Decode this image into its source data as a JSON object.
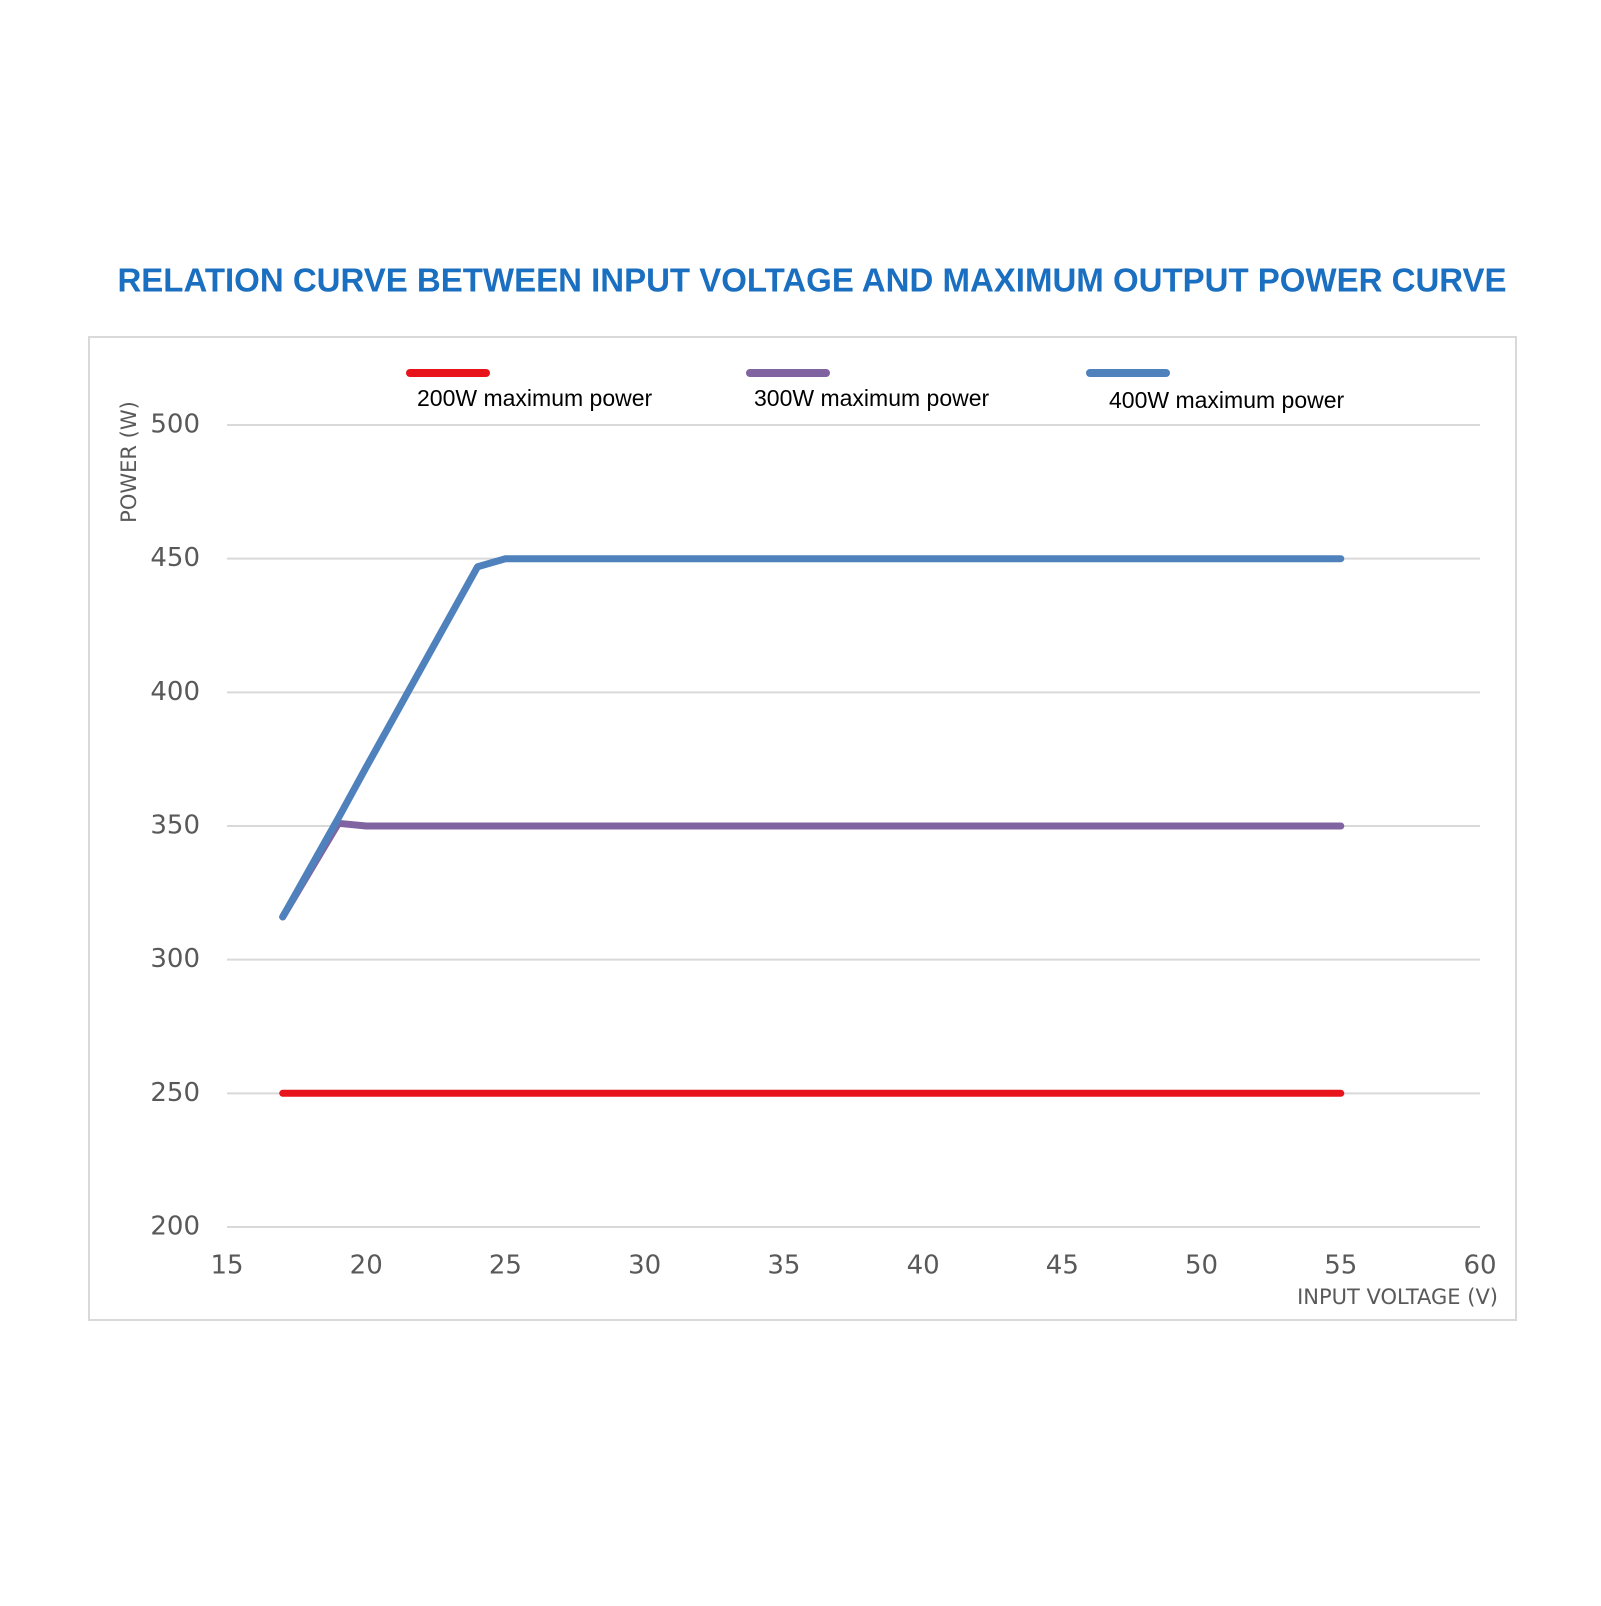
{
  "chart_data": {
    "type": "line",
    "title": "RELATION CURVE BETWEEN INPUT VOLTAGE AND MAXIMUM OUTPUT POWER CURVE",
    "x_label": "INPUT VOLTAGE (V)",
    "y_label": "POWER (W)",
    "x": [
      17,
      19,
      20,
      24,
      25,
      55
    ],
    "series": [
      {
        "name": "200W maximum power",
        "color": "#e8141c",
        "values": [
          250,
          250,
          250,
          250,
          250,
          250
        ]
      },
      {
        "name": "300W maximum power",
        "color": "#8064a2",
        "values": [
          316,
          351,
          350,
          350,
          350,
          350
        ]
      },
      {
        "name": "400W maximum power",
        "color": "#4f81bd",
        "values": [
          316,
          353,
          372,
          447,
          450,
          450
        ]
      }
    ],
    "xlim": [
      15,
      60
    ],
    "xticks": [
      15,
      20,
      25,
      30,
      35,
      40,
      45,
      50,
      55,
      60
    ],
    "ylim": [
      200,
      500
    ],
    "yticks": [
      200,
      250,
      300,
      350,
      400,
      450,
      500
    ],
    "grid": true,
    "legend": "top"
  }
}
